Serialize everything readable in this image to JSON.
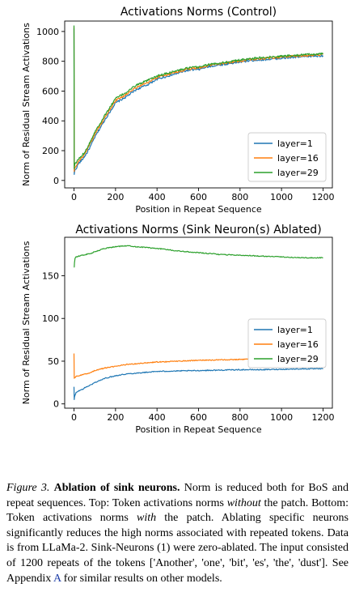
{
  "chart_data": [
    {
      "type": "line",
      "title": "Activations Norms (Control)",
      "xlabel": "Position in Repeat Sequence",
      "ylabel": "Norm of Residual Stream Activations",
      "xlim": [
        -45,
        1245
      ],
      "ylim": [
        -50,
        1070
      ],
      "xticks": [
        0,
        200,
        400,
        600,
        800,
        1000,
        1200
      ],
      "yticks": [
        0,
        200,
        400,
        600,
        800,
        1000
      ],
      "grid": false,
      "legend_position": "lower-right",
      "series": [
        {
          "name": "layer=1",
          "color": "#1f77b4",
          "x": [
            0,
            1,
            2,
            3,
            5,
            10,
            20,
            40,
            60,
            80,
            100,
            150,
            200,
            250,
            300,
            350,
            400,
            450,
            500,
            550,
            600,
            650,
            700,
            750,
            800,
            850,
            900,
            950,
            1000,
            1050,
            1100,
            1150,
            1200
          ],
          "y": [
            1020,
            40,
            55,
            60,
            70,
            80,
            110,
            140,
            180,
            230,
            290,
            410,
            520,
            560,
            610,
            640,
            680,
            700,
            720,
            740,
            745,
            765,
            775,
            785,
            795,
            805,
            810,
            815,
            820,
            825,
            830,
            835,
            838
          ]
        },
        {
          "name": "layer=16",
          "color": "#ff7f0e",
          "x": [
            0,
            1,
            2,
            3,
            5,
            10,
            20,
            40,
            60,
            80,
            100,
            150,
            200,
            250,
            300,
            350,
            400,
            450,
            500,
            550,
            600,
            650,
            700,
            750,
            800,
            850,
            900,
            950,
            1000,
            1050,
            1100,
            1150,
            1200
          ],
          "y": [
            1030,
            60,
            75,
            80,
            90,
            100,
            125,
            155,
            195,
            250,
            310,
            425,
            535,
            575,
            625,
            655,
            690,
            710,
            730,
            748,
            755,
            772,
            782,
            792,
            802,
            812,
            818,
            823,
            828,
            833,
            838,
            842,
            846
          ]
        },
        {
          "name": "layer=29",
          "color": "#2ca02c",
          "x": [
            0,
            1,
            2,
            3,
            5,
            10,
            20,
            40,
            60,
            80,
            100,
            150,
            200,
            250,
            300,
            350,
            400,
            450,
            500,
            550,
            600,
            650,
            700,
            750,
            800,
            850,
            900,
            950,
            1000,
            1050,
            1100,
            1150,
            1200
          ],
          "y": [
            1040,
            80,
            95,
            100,
            110,
            120,
            140,
            170,
            210,
            265,
            325,
            440,
            550,
            590,
            640,
            668,
            700,
            720,
            738,
            755,
            762,
            778,
            788,
            798,
            808,
            818,
            824,
            829,
            834,
            839,
            843,
            847,
            850
          ]
        }
      ]
    },
    {
      "type": "line",
      "title": "Activations Norms (Sink Neuron(s) Ablated)",
      "xlabel": "Position in Repeat Sequence",
      "ylabel": "Norm of Residual Stream Activations",
      "xlim": [
        -45,
        1245
      ],
      "ylim": [
        -5,
        195
      ],
      "xticks": [
        0,
        200,
        400,
        600,
        800,
        1000,
        1200
      ],
      "yticks": [
        0,
        50,
        100,
        150
      ],
      "grid": false,
      "legend_position": "center-right",
      "series": [
        {
          "name": "layer=1",
          "color": "#1f77b4",
          "x": [
            0,
            1,
            2,
            5,
            10,
            20,
            40,
            60,
            80,
            100,
            150,
            200,
            250,
            300,
            350,
            400,
            500,
            600,
            700,
            800,
            900,
            1000,
            1100,
            1200
          ],
          "y": [
            20,
            5,
            8,
            10,
            13,
            15,
            17,
            20,
            22,
            25,
            30,
            33,
            35,
            36,
            37,
            38,
            38.5,
            39,
            39.5,
            40,
            40,
            40.5,
            41,
            41
          ]
        },
        {
          "name": "layer=16",
          "color": "#ff7f0e",
          "x": [
            0,
            1,
            2,
            5,
            10,
            20,
            40,
            60,
            80,
            100,
            150,
            200,
            250,
            300,
            350,
            400,
            500,
            600,
            700,
            800,
            900,
            1000,
            1100,
            1200
          ],
          "y": [
            59,
            30,
            31,
            31,
            32,
            33,
            34,
            35,
            37,
            39,
            42,
            44,
            46,
            47,
            48,
            49,
            50,
            51,
            51.5,
            52,
            52.5,
            53,
            53.5,
            54
          ]
        },
        {
          "name": "layer=29",
          "color": "#2ca02c",
          "x": [
            0,
            1,
            2,
            5,
            10,
            20,
            40,
            60,
            80,
            100,
            150,
            200,
            250,
            300,
            350,
            400,
            500,
            600,
            700,
            800,
            900,
            1000,
            1100,
            1200
          ],
          "y": [
            160,
            160,
            165,
            170,
            172,
            173,
            174,
            175,
            176,
            178,
            182,
            184,
            185,
            184,
            183,
            182,
            179,
            177,
            175,
            174,
            173,
            172,
            171,
            171
          ]
        }
      ]
    }
  ],
  "caption": {
    "label": "Figure 3.",
    "heading": "Ablation of sink neurons.",
    "s1": " Norm is reduced both for BoS and repeat sequences. Top: Token activations norms ",
    "em1": "without",
    "s2": " the patch. Bottom: Token activations norms ",
    "em2": "with",
    "s3": " the patch. Ablating specific neurons significantly reduces the high norms associated with repeated tokens. Data is from LLaMa-2. Sink-Neurons (1) were zero-ablated. The input consisted of 1200 repeats of the tokens ['Another', 'one', 'bit', 'es', 'the', 'dust']. See Appendix ",
    "link": "A",
    "s4": " for similar results on other models."
  }
}
